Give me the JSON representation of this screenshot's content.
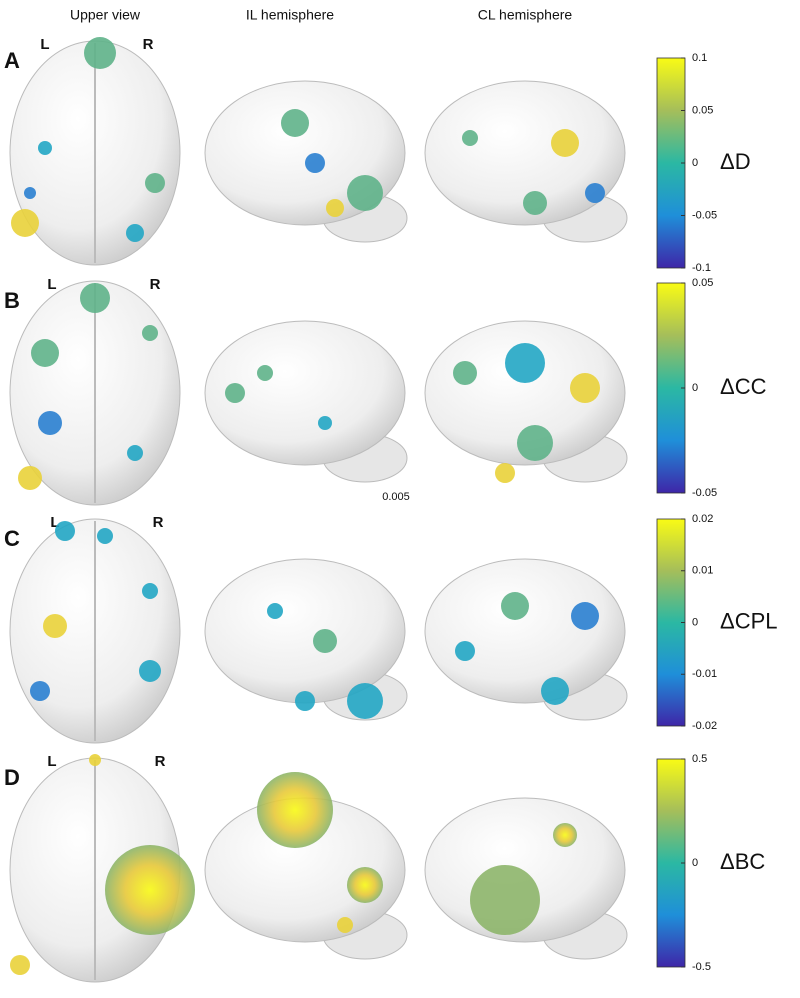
{
  "header": {
    "columns": [
      "Upper view",
      "IL hemisphere",
      "CL hemisphere"
    ]
  },
  "rows": [
    {
      "letter": "A",
      "left": "L",
      "right": "R",
      "colorbar": {
        "label": "ΔD",
        "lim": [
          -0.1,
          0.1
        ],
        "ticks": [
          0.1,
          0.05,
          0,
          -0.05,
          -0.1
        ]
      }
    },
    {
      "letter": "B",
      "left": "L",
      "right": "R",
      "colorbar": {
        "label": "ΔCC",
        "lim": [
          -0.05,
          0.05
        ],
        "ticks": [
          0.05,
          0,
          -0.05
        ]
      }
    },
    {
      "letter": "C",
      "left": "L",
      "right": "R",
      "colorbar": {
        "label": "ΔCPL",
        "lim": [
          -0.02,
          0.02
        ],
        "ticks": [
          0.02,
          0.01,
          0,
          -0.01,
          -0.02
        ]
      }
    },
    {
      "letter": "D",
      "left": "L",
      "right": "R",
      "colorbar": {
        "label": "ΔBC",
        "lim": [
          -0.5,
          0.5
        ],
        "ticks": [
          0.5,
          0,
          -0.5
        ]
      }
    }
  ],
  "note": "0.005"
}
